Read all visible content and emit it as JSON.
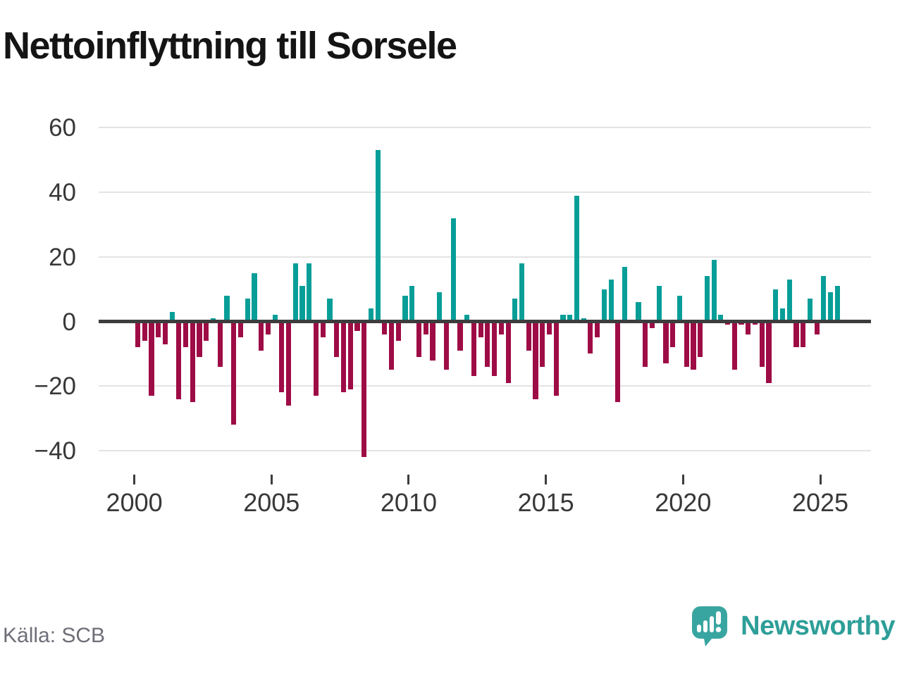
{
  "title": "Nettoinflyttning till Sorsele",
  "source": "Källa: SCB",
  "branding": {
    "name": "Newsworthy",
    "logo_icon": "bar-chart-speech-bubble-icon"
  },
  "colors": {
    "positive_bar": "#089e98",
    "negative_bar": "#9e0c46",
    "zero_axis": "#3d3d3d",
    "gridline": "#e4e4e4",
    "axis_text": "#383838",
    "source_text": "#6e6e78",
    "brand_teal": "#39a5a0"
  },
  "chart_data": {
    "type": "bar",
    "title": "Nettoinflyttning till Sorsele",
    "frequency": "quarterly",
    "x_start": {
      "year": 2000,
      "quarter": 1
    },
    "x_end": {
      "year": 2025,
      "quarter": 3
    },
    "values": [
      -8,
      -6,
      -23,
      -5,
      -7,
      3,
      -24,
      -8,
      -25,
      -11,
      -6,
      1,
      -14,
      8,
      -32,
      -5,
      7,
      15,
      -9,
      -4,
      2,
      -22,
      -26,
      18,
      11,
      18,
      -23,
      -5,
      7,
      -11,
      -22,
      -21,
      -3,
      -42,
      4,
      53,
      -4,
      -15,
      -6,
      8,
      11,
      -11,
      -4,
      -12,
      9,
      -15,
      32,
      -9,
      2,
      -17,
      -5,
      -14,
      -17,
      -4,
      -19,
      7,
      18,
      -9,
      -24,
      -14,
      -4,
      -23,
      2,
      2,
      39,
      1,
      -10,
      -5,
      10,
      13,
      -25,
      17,
      0,
      6,
      -14,
      -2,
      11,
      -13,
      -8,
      8,
      -14,
      -15,
      -11,
      14,
      19,
      2,
      -1,
      -15,
      -1,
      -4,
      -1,
      -14,
      -19,
      10,
      4,
      13,
      -8,
      -8,
      7,
      -4,
      14,
      9,
      11
    ],
    "x_tick_years": [
      2000,
      2005,
      2010,
      2015,
      2020,
      2025
    ],
    "y_ticks": [
      60,
      40,
      20,
      0,
      -20,
      -40
    ],
    "y_tick_labels": [
      "60",
      "40",
      "20",
      "0",
      "−20",
      "−40"
    ],
    "ylim": [
      -46,
      66
    ],
    "grid": "horizontal-only",
    "legend": "none",
    "positive_color": "#089e98",
    "negative_color": "#9e0c46"
  }
}
